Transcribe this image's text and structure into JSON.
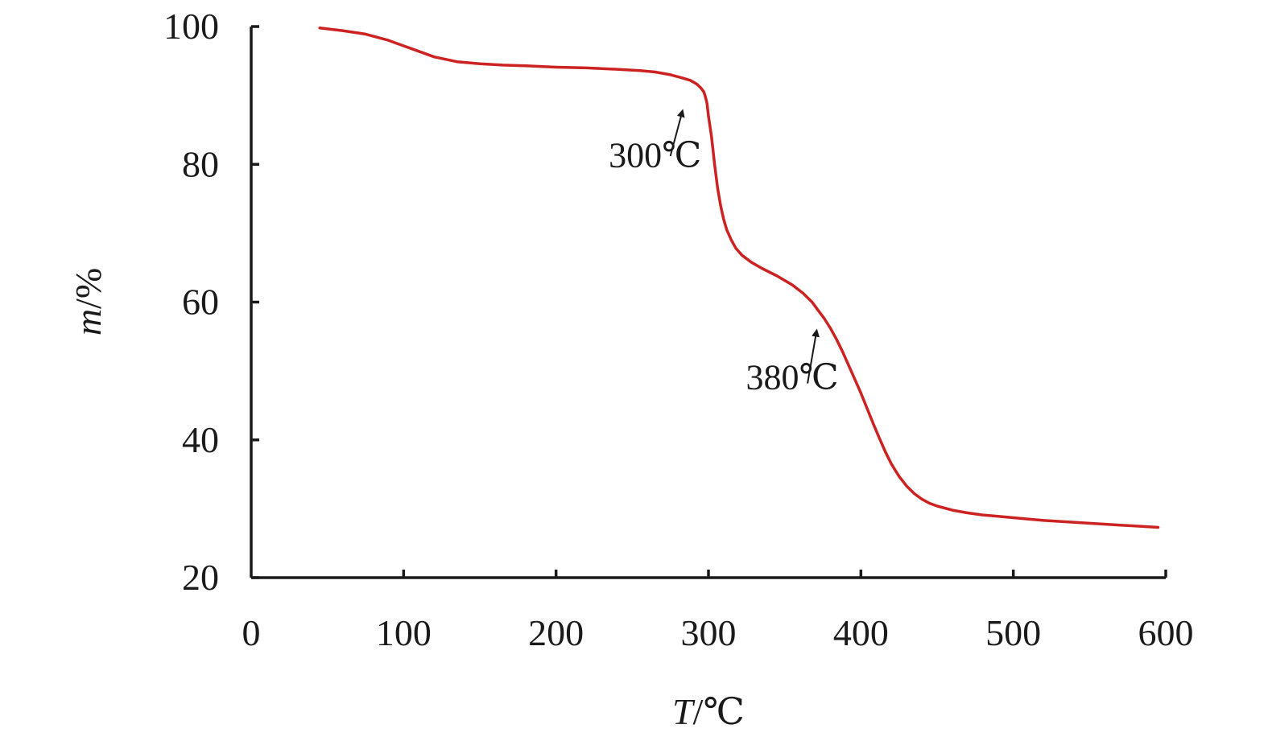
{
  "chart_data": {
    "type": "line",
    "title": "",
    "xlabel_var": "T",
    "xlabel_unit": "/℃",
    "ylabel_var": "m",
    "ylabel_unit": "/%",
    "xlim": [
      0,
      600
    ],
    "ylim": [
      20,
      100
    ],
    "x_ticks": [
      0,
      100,
      200,
      300,
      400,
      500,
      600
    ],
    "x_tick_labels": [
      "0",
      "100",
      "200",
      "300",
      "400",
      "500",
      "600"
    ],
    "y_ticks": [
      20,
      40,
      60,
      80,
      100
    ],
    "y_tick_labels": [
      "20",
      "40",
      "60",
      "80",
      "100"
    ],
    "grid": false,
    "line_color": "#cc2222",
    "axis_color": "#1a1a1a",
    "series": [
      {
        "x": [
          45,
          60,
          75,
          90,
          100,
          110,
          120,
          135,
          150,
          165,
          180,
          200,
          220,
          240,
          255,
          265,
          275,
          282,
          288,
          292,
          295,
          297,
          298,
          299,
          300,
          302,
          304,
          306,
          308,
          310,
          312,
          315,
          318,
          322,
          328,
          335,
          345,
          355,
          362,
          368,
          372,
          376,
          380,
          384,
          388,
          392,
          396,
          400,
          404,
          408,
          412,
          416,
          420,
          425,
          430,
          435,
          440,
          445,
          450,
          460,
          470,
          480,
          490,
          500,
          510,
          520,
          535,
          550,
          565,
          580,
          595
        ],
        "y": [
          99.8,
          99.4,
          98.9,
          98.0,
          97.2,
          96.4,
          95.6,
          94.9,
          94.6,
          94.4,
          94.3,
          94.1,
          94.0,
          93.8,
          93.6,
          93.4,
          93.0,
          92.6,
          92.2,
          91.7,
          91.1,
          90.5,
          89.8,
          88.9,
          87.0,
          84.0,
          80.0,
          76.5,
          74.0,
          72.0,
          70.5,
          69.0,
          67.8,
          66.8,
          65.8,
          64.9,
          63.8,
          62.5,
          61.3,
          60.0,
          58.8,
          57.6,
          56.2,
          54.6,
          52.8,
          50.8,
          48.8,
          46.8,
          44.6,
          42.4,
          40.3,
          38.3,
          36.5,
          34.7,
          33.3,
          32.2,
          31.4,
          30.8,
          30.4,
          29.8,
          29.4,
          29.1,
          28.9,
          28.7,
          28.5,
          28.3,
          28.1,
          27.9,
          27.7,
          27.5,
          27.3
        ]
      }
    ],
    "annotations": [
      {
        "text": "300℃",
        "label_x": 265,
        "label_y": 79.6,
        "arrow_from": [
          275,
          81.2
        ],
        "arrow_to": [
          283,
          87.8
        ]
      },
      {
        "text": "380℃",
        "label_x": 355,
        "label_y": 47.4,
        "arrow_from": [
          365,
          48.2
        ],
        "arrow_to": [
          371,
          55.9
        ]
      }
    ]
  }
}
